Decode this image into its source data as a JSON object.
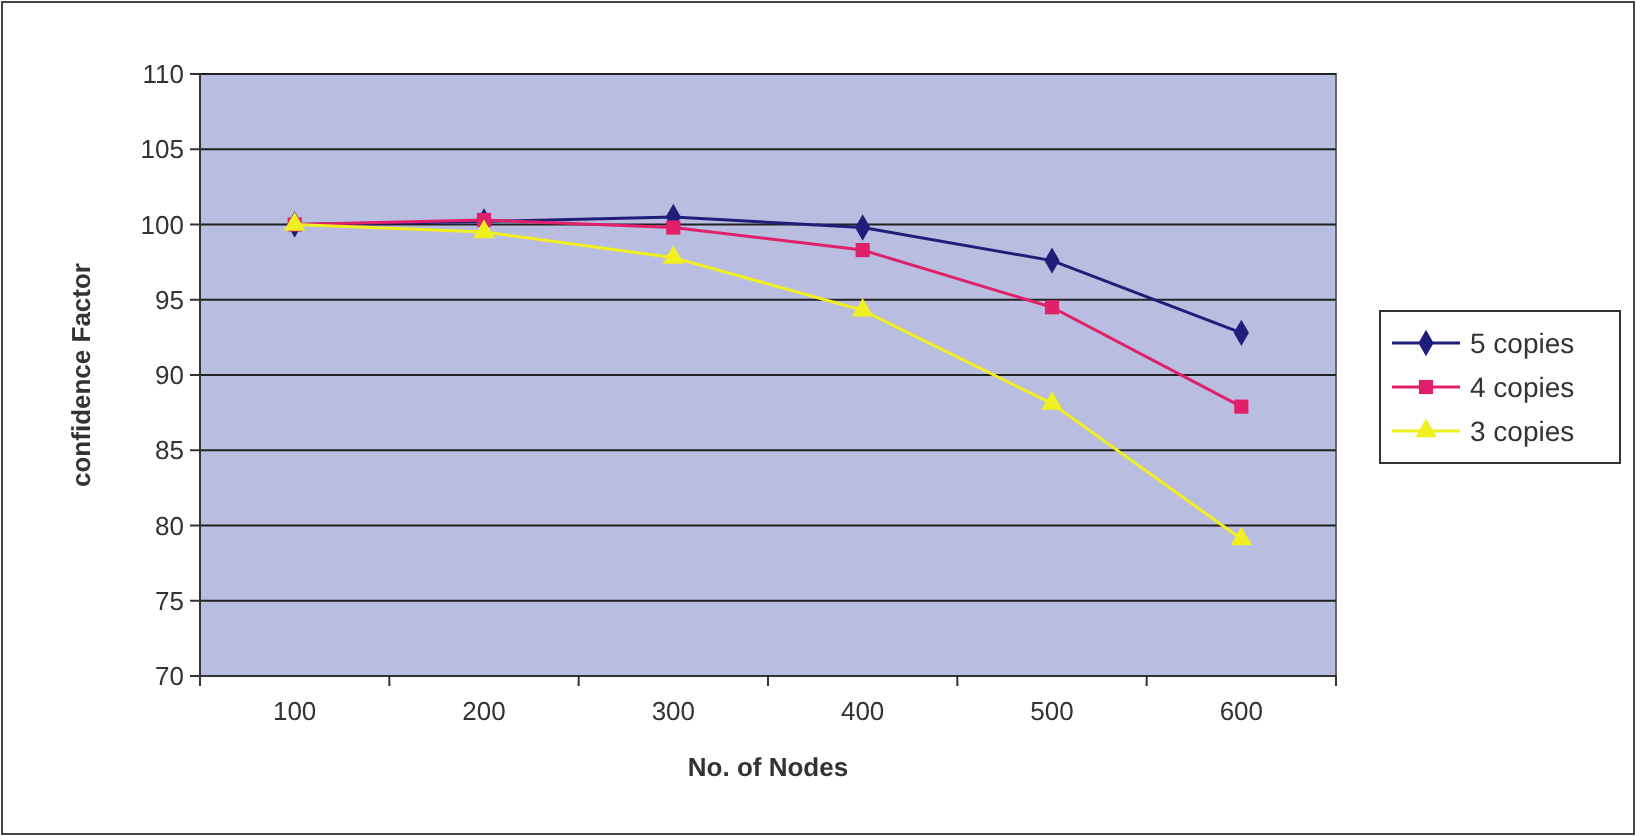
{
  "chart_data": {
    "type": "line",
    "xlabel": "No. of Nodes",
    "ylabel": "confidence Factor",
    "categories": [
      "100",
      "200",
      "300",
      "400",
      "500",
      "600"
    ],
    "series": [
      {
        "name": "5 copies",
        "color": "#1f1f7a",
        "marker": "diamond",
        "values": [
          100,
          100.2,
          100.5,
          99.8,
          97.6,
          92.8
        ]
      },
      {
        "name": "4 copies",
        "color": "#e0206a",
        "marker": "square",
        "values": [
          100,
          100.3,
          99.8,
          98.3,
          94.5,
          87.9
        ]
      },
      {
        "name": "3 copies",
        "color": "#f0f020",
        "marker": "triangle",
        "values": [
          100,
          99.5,
          97.8,
          94.3,
          88.1,
          79.1
        ]
      }
    ],
    "ylim": [
      70,
      110
    ],
    "yticks": [
      70,
      75,
      80,
      85,
      90,
      95,
      100,
      105,
      110
    ],
    "grid": "y",
    "legend": "right"
  }
}
